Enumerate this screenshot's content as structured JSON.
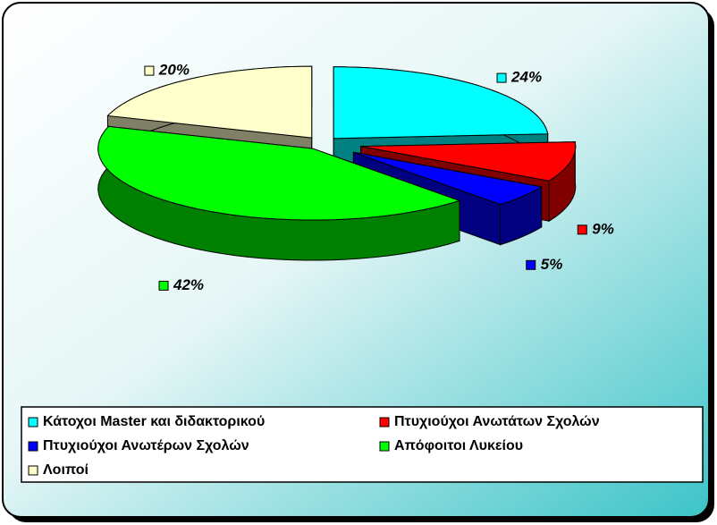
{
  "chart_data": {
    "type": "pie3d",
    "categories": [
      "Κάτοχοι Master και διδακτορικού",
      "Πτυχιούχοι Ανωτάτων Σχολών",
      "Πτυχιούχοι Ανωτέρων Σχολών",
      "Απόφοιτοι Λυκείου",
      "Λοιποί"
    ],
    "values": [
      24,
      9,
      5,
      42,
      20
    ],
    "value_labels": [
      "24%",
      "9%",
      "5%",
      "42%",
      "20%"
    ],
    "colors": [
      "#00ffff",
      "#ff0000",
      "#0000ff",
      "#00ff00",
      "#ffffcc"
    ],
    "legend": "bottom"
  }
}
